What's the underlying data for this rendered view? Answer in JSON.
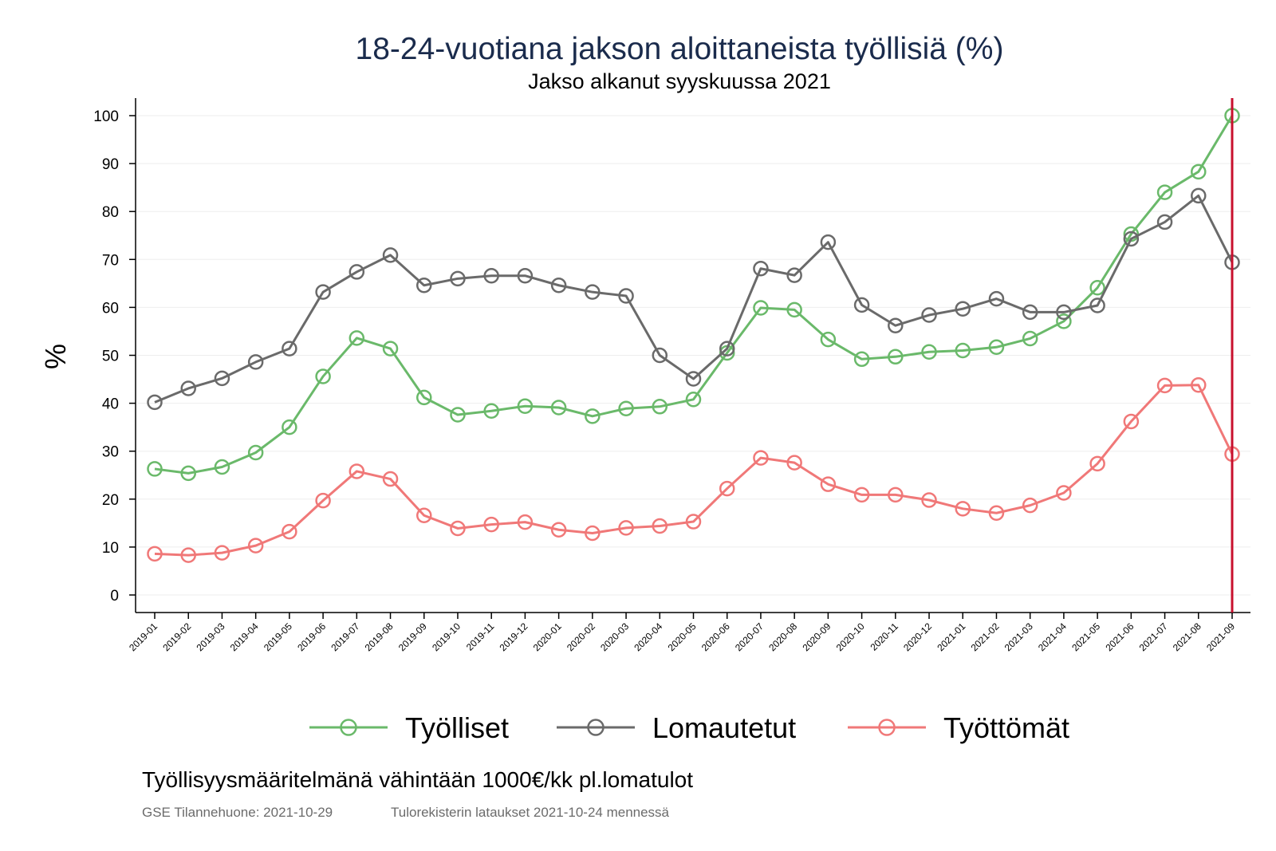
{
  "chart_data": {
    "type": "line",
    "title": "18-24-vuotiana jakson aloittaneista työllisiä (%)",
    "subtitle": "Jakso alkanut syyskuussa 2021",
    "ylabel": "%",
    "xlabel": "",
    "ylim": [
      0,
      100
    ],
    "yticks": [
      0,
      10,
      20,
      30,
      40,
      50,
      60,
      70,
      80,
      90,
      100
    ],
    "grid": true,
    "legend_position": "bottom",
    "reference_line": {
      "category": "2021-09",
      "color": "#c8102e"
    },
    "categories": [
      "2019-01",
      "2019-02",
      "2019-03",
      "2019-04",
      "2019-05",
      "2019-06",
      "2019-07",
      "2019-08",
      "2019-09",
      "2019-10",
      "2019-11",
      "2019-12",
      "2020-01",
      "2020-02",
      "2020-03",
      "2020-04",
      "2020-05",
      "2020-06",
      "2020-07",
      "2020-08",
      "2020-09",
      "2020-10",
      "2020-11",
      "2020-12",
      "2021-01",
      "2021-02",
      "2021-03",
      "2021-04",
      "2021-05",
      "2021-06",
      "2021-07",
      "2021-08",
      "2021-09"
    ],
    "series": [
      {
        "name": "Työlliset",
        "color": "#6ab96a",
        "values": [
          26.3,
          25.4,
          26.7,
          29.7,
          35.0,
          45.6,
          53.6,
          51.4,
          41.2,
          37.6,
          38.4,
          39.4,
          39.1,
          37.3,
          38.9,
          39.3,
          40.8,
          50.5,
          59.9,
          59.5,
          53.3,
          49.2,
          49.7,
          50.7,
          51.0,
          51.7,
          53.5,
          57.1,
          64.1,
          75.3,
          84.0,
          88.3,
          100.0
        ]
      },
      {
        "name": "Lomautetut",
        "color": "#6a6a6a",
        "values": [
          40.2,
          43.1,
          45.2,
          48.6,
          51.4,
          63.2,
          67.4,
          70.9,
          64.6,
          66.0,
          66.6,
          66.6,
          64.6,
          63.2,
          62.4,
          50.0,
          45.1,
          51.4,
          68.1,
          66.7,
          73.6,
          60.5,
          56.2,
          58.4,
          59.7,
          61.8,
          59.0,
          59.0,
          60.4,
          74.3,
          77.8,
          83.3,
          69.4
        ]
      },
      {
        "name": "Työttömät",
        "color": "#f07878",
        "values": [
          8.6,
          8.3,
          8.8,
          10.3,
          13.2,
          19.7,
          25.8,
          24.2,
          16.6,
          13.9,
          14.7,
          15.2,
          13.6,
          12.9,
          14.0,
          14.4,
          15.3,
          22.2,
          28.6,
          27.6,
          23.1,
          20.9,
          20.9,
          19.8,
          18.0,
          17.1,
          18.7,
          21.3,
          27.4,
          36.2,
          43.7,
          43.8,
          29.4
        ]
      }
    ]
  },
  "footnote": "Työllisyysmääritelmänä vähintään 1000€/kk pl.lomatulot",
  "source_left": "GSE Tilannehuone: 2021-10-29",
  "source_right": "Tulorekisterin lataukset 2021-10-24 mennessä"
}
